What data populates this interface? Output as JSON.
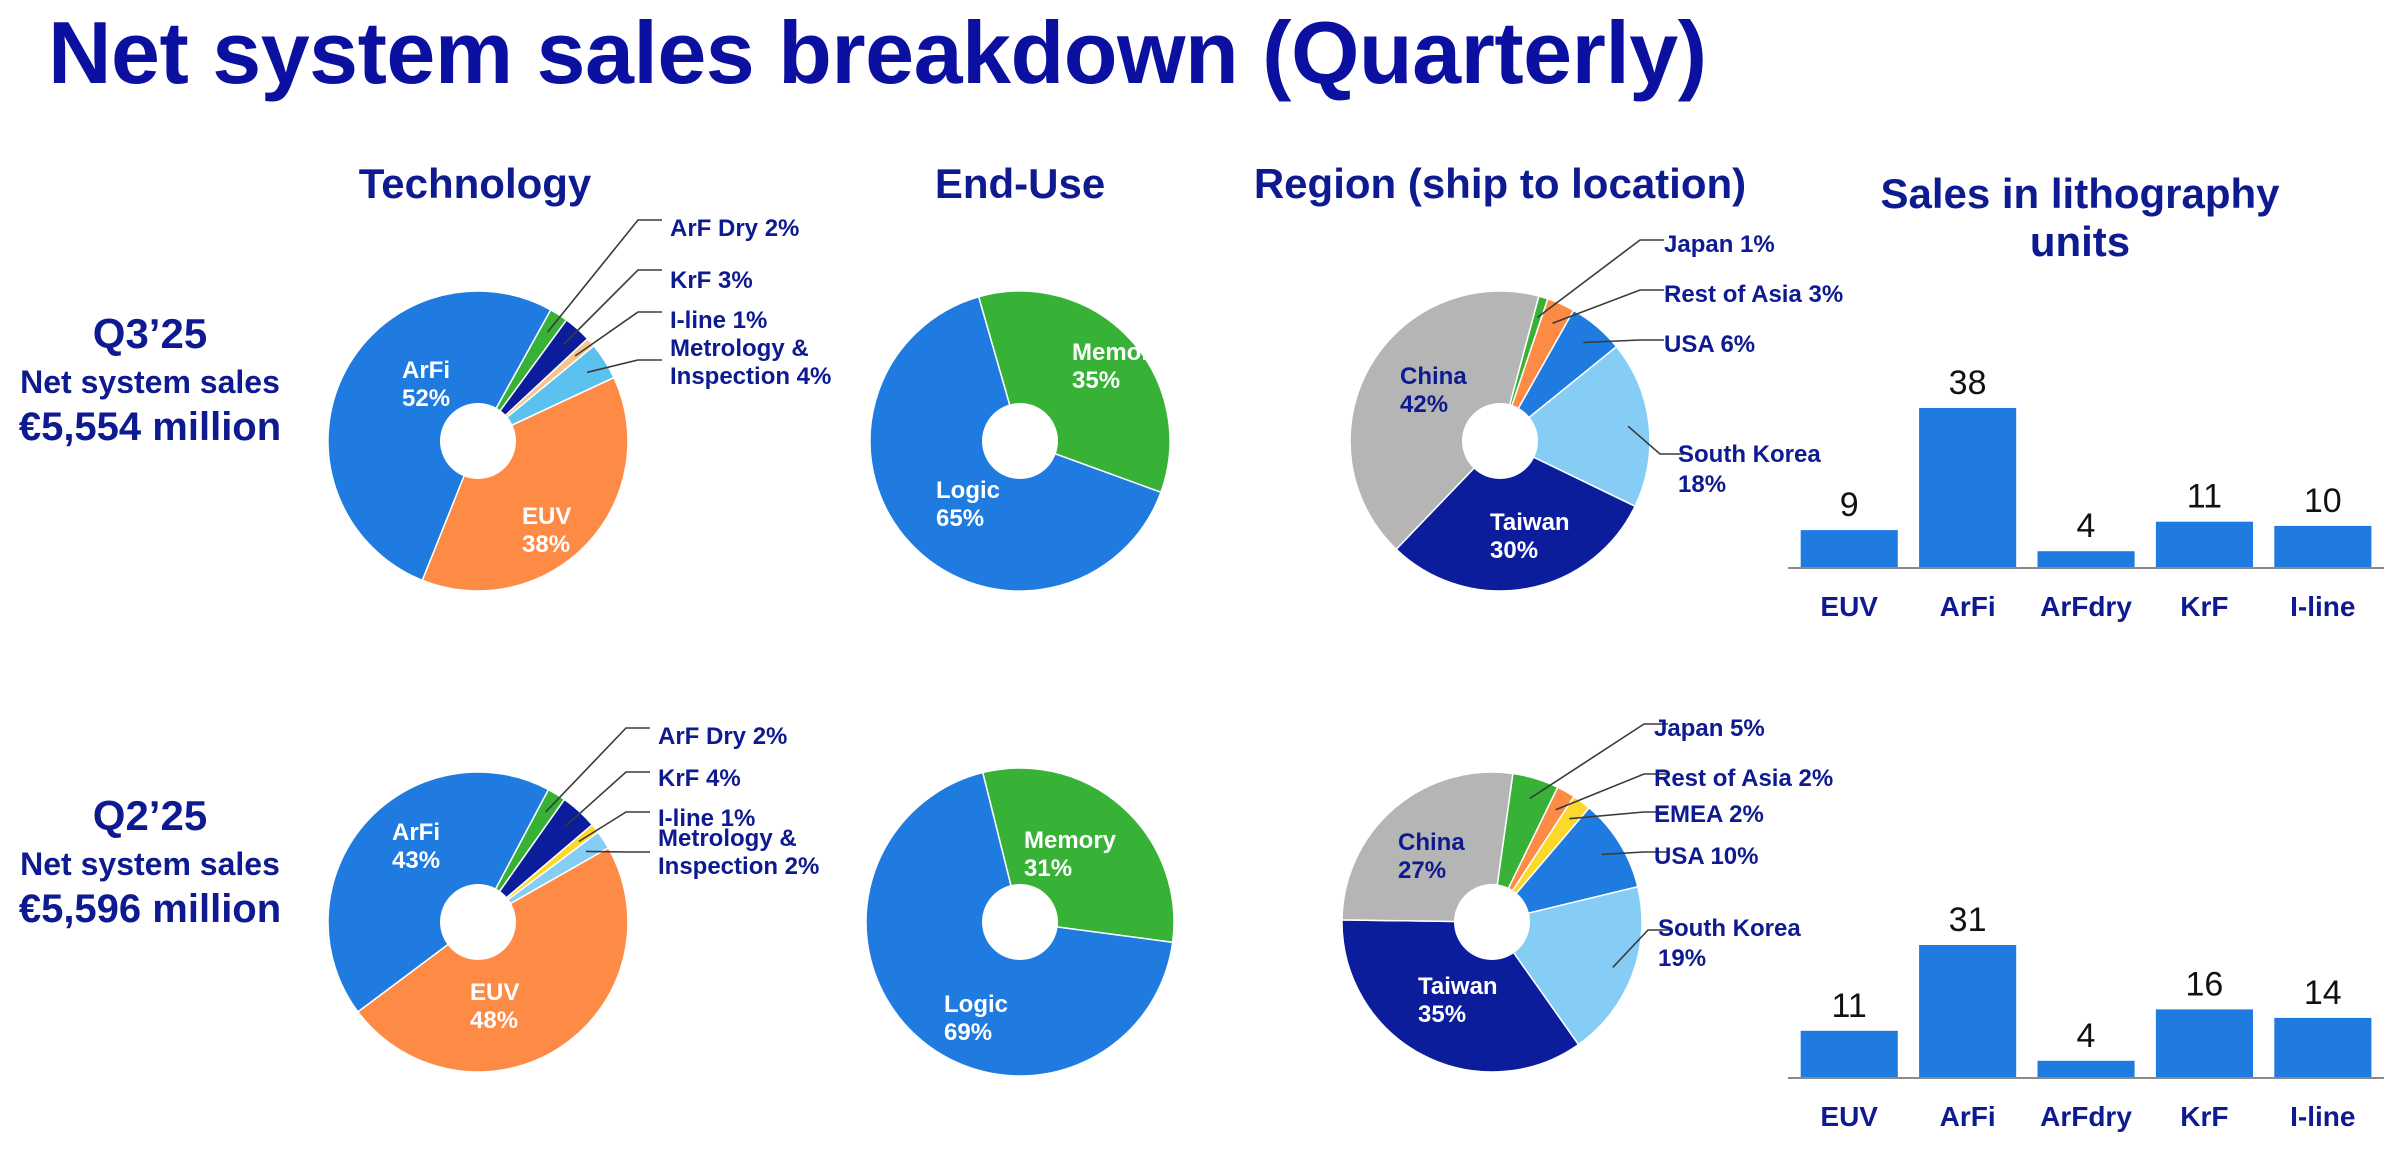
{
  "title": "Net system sales breakdown (Quarterly)",
  "columns": {
    "technology": "Technology",
    "end_use": "End-Use",
    "region": "Region (ship to location)",
    "units_line1": "Sales in lithography",
    "units_line2": "units"
  },
  "rows": [
    {
      "quarter": "Q3’25",
      "label": "Net system sales",
      "amount": "€5,554 million"
    },
    {
      "quarter": "Q2’25",
      "label": "Net system sales",
      "amount": "€5,596 million"
    }
  ],
  "colors": {
    "dark_navy": "#0c1d9c",
    "blue": "#1f7be0",
    "orange": "#fd8b46",
    "green": "#38b236",
    "light_blue": "#5bc2ef",
    "sky": "#86cdf5",
    "grey": "#b5b5b5",
    "peach": "#f8c48d",
    "yellow": "#fbd92a",
    "navy_text": "#0e1a8f"
  },
  "chart_data": [
    {
      "type": "pie",
      "id": "tech-q3",
      "title": "Technology",
      "slices": [
        {
          "name": "ArF Dry",
          "value": 2,
          "color": "#38b236",
          "label": "ArF Dry 2%"
        },
        {
          "name": "KrF",
          "value": 3,
          "color": "#0c1d9c",
          "label": "KrF 3%"
        },
        {
          "name": "I-line",
          "value": 1,
          "color": "#f8c48d",
          "label": "I-line 1%"
        },
        {
          "name": "Metrology & Inspection",
          "value": 4,
          "color": "#5bc2ef",
          "label": "Metrology &",
          "label2": "Inspection 4%"
        },
        {
          "name": "EUV",
          "value": 38,
          "color": "#fd8b46",
          "label": "EUV",
          "pct": "38%"
        },
        {
          "name": "ArFi",
          "value": 52,
          "color": "#1f7be0",
          "label": "ArFi",
          "pct": "52%"
        }
      ]
    },
    {
      "type": "pie",
      "id": "enduse-q3",
      "title": "End-Use",
      "slices": [
        {
          "name": "Memory",
          "value": 35,
          "color": "#38b236",
          "label": "Memory",
          "pct": "35%"
        },
        {
          "name": "Logic",
          "value": 65,
          "color": "#1f7be0",
          "label": "Logic",
          "pct": "65%"
        }
      ]
    },
    {
      "type": "pie",
      "id": "region-q3",
      "title": "Region (ship to location)",
      "slices": [
        {
          "name": "Japan",
          "value": 1,
          "color": "#38b236",
          "label": "Japan 1%"
        },
        {
          "name": "Rest of Asia",
          "value": 3,
          "color": "#fd8b46",
          "label": "Rest of Asia 3%"
        },
        {
          "name": "USA",
          "value": 6,
          "color": "#1f7be0",
          "label": "USA 6%"
        },
        {
          "name": "South Korea",
          "value": 18,
          "color": "#86cdf5",
          "label": "South Korea",
          "pct": "18%"
        },
        {
          "name": "Taiwan",
          "value": 30,
          "color": "#0c1d9c",
          "label": "Taiwan",
          "pct": "30%"
        },
        {
          "name": "China",
          "value": 42,
          "color": "#b5b5b5",
          "label": "China",
          "pct": "42%"
        }
      ]
    },
    {
      "type": "bar",
      "id": "units-q3",
      "title": "Sales in lithography units",
      "categories": [
        "EUV",
        "ArFi",
        "ArFdry",
        "KrF",
        "I-line"
      ],
      "values": [
        9,
        38,
        4,
        11,
        10
      ]
    },
    {
      "type": "pie",
      "id": "tech-q2",
      "title": "Technology",
      "slices": [
        {
          "name": "ArF Dry",
          "value": 2,
          "color": "#38b236",
          "label": "ArF Dry 2%"
        },
        {
          "name": "KrF",
          "value": 4,
          "color": "#0c1d9c",
          "label": "KrF 4%"
        },
        {
          "name": "I-line",
          "value": 1,
          "color": "#fbd92a",
          "label": "I-line 1%"
        },
        {
          "name": "Metrology & Inspection",
          "value": 2,
          "color": "#86cdf5",
          "label": "Metrology &",
          "label2": "Inspection 2%"
        },
        {
          "name": "EUV",
          "value": 48,
          "color": "#fd8b46",
          "label": "EUV",
          "pct": "48%"
        },
        {
          "name": "ArFi",
          "value": 43,
          "color": "#1f7be0",
          "label": "ArFi",
          "pct": "43%"
        }
      ]
    },
    {
      "type": "pie",
      "id": "enduse-q2",
      "title": "End-Use",
      "slices": [
        {
          "name": "Memory",
          "value": 31,
          "color": "#38b236",
          "label": "Memory",
          "pct": "31%"
        },
        {
          "name": "Logic",
          "value": 69,
          "color": "#1f7be0",
          "label": "Logic",
          "pct": "69%"
        }
      ]
    },
    {
      "type": "pie",
      "id": "region-q2",
      "title": "Region (ship to location)",
      "slices": [
        {
          "name": "Japan",
          "value": 5,
          "color": "#38b236",
          "label": "Japan 5%"
        },
        {
          "name": "Rest of Asia",
          "value": 2,
          "color": "#fd8b46",
          "label": "Rest of Asia 2%"
        },
        {
          "name": "EMEA",
          "value": 2,
          "color": "#fbd92a",
          "label": "EMEA 2%"
        },
        {
          "name": "USA",
          "value": 10,
          "color": "#1f7be0",
          "label": "USA 10%"
        },
        {
          "name": "South Korea",
          "value": 19,
          "color": "#86cdf5",
          "label": "South Korea",
          "pct": "19%"
        },
        {
          "name": "Taiwan",
          "value": 35,
          "color": "#0c1d9c",
          "label": "Taiwan",
          "pct": "35%"
        },
        {
          "name": "China",
          "value": 27,
          "color": "#b5b5b5",
          "label": "China",
          "pct": "27%"
        }
      ]
    },
    {
      "type": "bar",
      "id": "units-q2",
      "title": "Sales in lithography units",
      "categories": [
        "EUV",
        "ArFi",
        "ArFdry",
        "KrF",
        "I-line"
      ],
      "values": [
        11,
        31,
        4,
        16,
        14
      ]
    }
  ]
}
